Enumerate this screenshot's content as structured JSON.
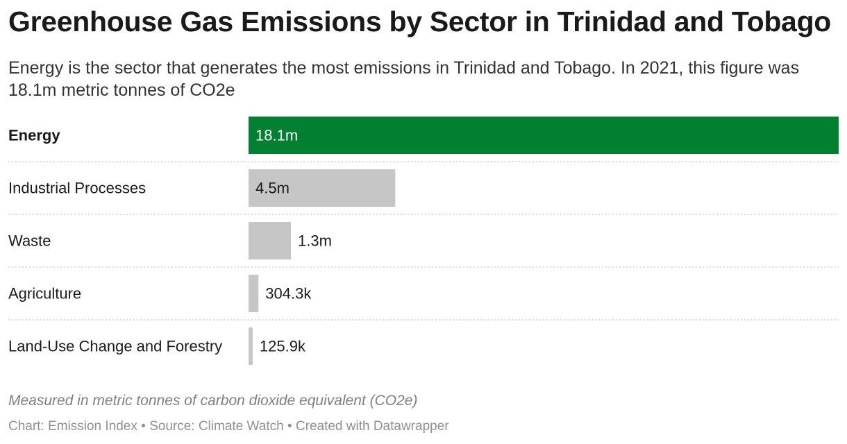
{
  "title": "Greenhouse Gas Emissions by Sector in Trinidad and Tobago",
  "subtitle": "Energy is the sector that generates the most emissions in Trinidad and Tobago. In 2021, this figure was 18.1m metric tonnes of CO2e",
  "notes": "Measured in metric tonnes of carbon dioxide equivalent (CO2e)",
  "footer": {
    "chart_credit": "Chart: Emission Index",
    "source": "Source: Climate Watch",
    "tool": "Created with Datawrapper",
    "separator": "•"
  },
  "colors": {
    "highlight": "#008030",
    "default_bar": "#c6c6c6"
  },
  "chart_data": {
    "type": "bar",
    "orientation": "horizontal",
    "categories": [
      "Energy",
      "Industrial Processes",
      "Waste",
      "Agriculture",
      "Land-Use Change and Forestry"
    ],
    "values": [
      18100000,
      4500000,
      1300000,
      304300,
      125900
    ],
    "value_labels": [
      "18.1m",
      "4.5m",
      "1.3m",
      "304.3k",
      "125.9k"
    ],
    "highlight_index": 0,
    "xlim": [
      0,
      18100000
    ],
    "grid": false,
    "legend": "none"
  }
}
